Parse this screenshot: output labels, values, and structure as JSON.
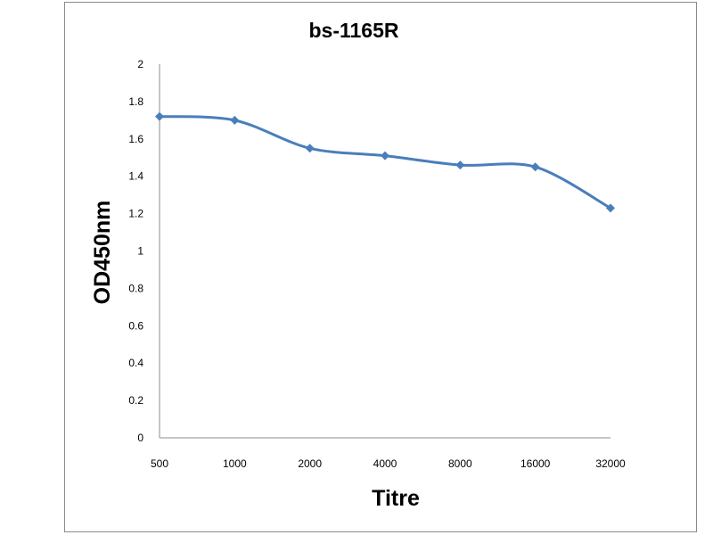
{
  "chart_data": {
    "type": "line",
    "title": "bs-1165R",
    "xlabel": "Titre",
    "ylabel": "OD450nm",
    "categories": [
      "500",
      "1000",
      "2000",
      "4000",
      "8000",
      "16000",
      "32000"
    ],
    "yticks": [
      "0",
      "0.2",
      "0.4",
      "0.6",
      "0.8",
      "1",
      "1.2",
      "1.4",
      "1.6",
      "1.8",
      "2"
    ],
    "ylim": [
      0,
      2
    ],
    "grid": false,
    "legend": "none",
    "series": [
      {
        "values": [
          1.72,
          1.7,
          1.55,
          1.51,
          1.46,
          1.45,
          1.23
        ]
      }
    ],
    "series_color": "#4a7ebb",
    "smooth": true
  }
}
